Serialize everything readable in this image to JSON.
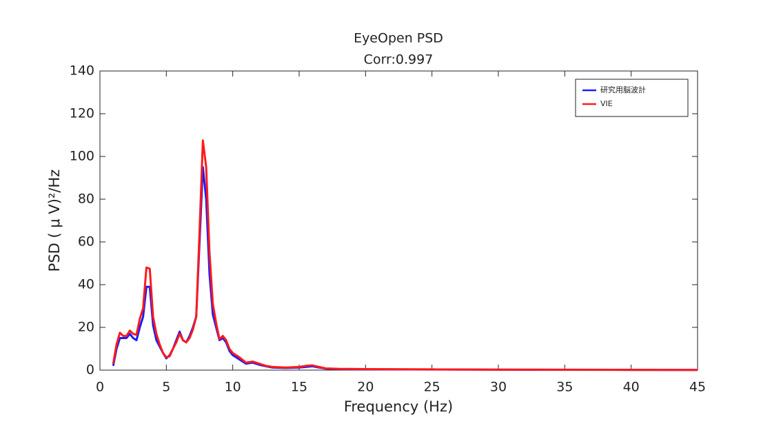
{
  "chart_data": {
    "type": "line",
    "title": "EyeOpen PSD",
    "subtitle": "Corr:0.997",
    "x_label": "Frequency (Hz)",
    "y_label": "PSD ( μ V)²/Hz",
    "x": [
      1,
      1.25,
      1.5,
      1.75,
      2,
      2.25,
      2.5,
      2.75,
      3,
      3.25,
      3.5,
      3.75,
      4,
      4.25,
      4.5,
      4.75,
      5,
      5.25,
      5.5,
      5.75,
      6,
      6.25,
      6.5,
      6.75,
      7,
      7.25,
      7.5,
      7.75,
      8,
      8.25,
      8.5,
      8.75,
      9,
      9.25,
      9.5,
      9.75,
      10,
      10.5,
      11,
      11.5,
      12,
      12.5,
      13,
      14,
      15,
      15.5,
      16,
      16.5,
      17,
      18,
      20,
      25,
      30,
      35,
      40,
      45
    ],
    "series": [
      {
        "name": "研究用脳波計",
        "color": "#1a1aff",
        "values": [
          2,
          10,
          15,
          15,
          15,
          17,
          15,
          14,
          20,
          25,
          39,
          39,
          21,
          14,
          11,
          8,
          5.5,
          7,
          10,
          14,
          18,
          14,
          13,
          16,
          20,
          25,
          60,
          95,
          80,
          45,
          26,
          20,
          14,
          15,
          13,
          9,
          7,
          5,
          3,
          3.5,
          2.5,
          1.8,
          1.2,
          1,
          1.2,
          1.5,
          1.8,
          1.2,
          0.7,
          0.5,
          0.4,
          0.3,
          0.2,
          0.15,
          0.1,
          0.1
        ]
      },
      {
        "name": "VIE",
        "color": "#ff1a1a",
        "values": [
          3,
          12,
          17.5,
          16,
          16,
          18.5,
          17,
          16.5,
          24,
          29,
          48,
          47.5,
          25,
          17,
          12,
          8,
          6,
          6.5,
          10,
          13,
          17,
          14,
          13,
          15,
          19,
          25,
          65,
          107.5,
          95,
          55,
          31,
          22,
          14.5,
          16,
          14,
          10,
          8,
          6,
          3.5,
          4,
          3,
          2,
          1.5,
          1.2,
          1.5,
          2,
          2.2,
          1.5,
          0.8,
          0.6,
          0.5,
          0.35,
          0.25,
          0.2,
          0.15,
          0.1
        ]
      }
    ],
    "xlim": [
      0,
      45
    ],
    "xticks": [
      0,
      5,
      10,
      15,
      20,
      25,
      30,
      35,
      40,
      45
    ],
    "ylim": [
      0,
      140
    ],
    "yticks": [
      0,
      20,
      40,
      60,
      80,
      100,
      120,
      140
    ],
    "grid": false,
    "legend": "upper right"
  }
}
